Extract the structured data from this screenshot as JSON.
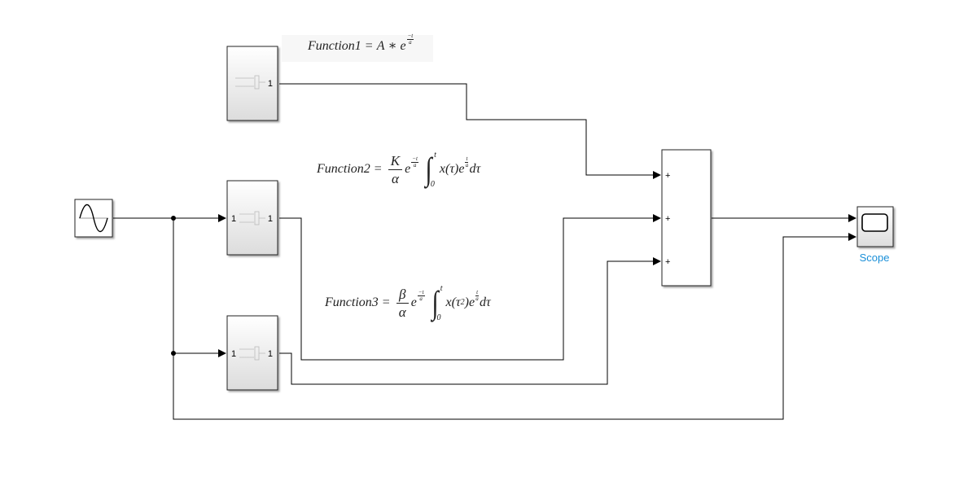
{
  "equations": {
    "f1": {
      "name": "Function1",
      "equals": "=",
      "body": "A",
      "star": "∗",
      "e": "e",
      "exp_num": "−t",
      "exp_den": "a"
    },
    "f2": {
      "name": "Function2",
      "equals": "=",
      "frac_num": "K",
      "frac_den": "α",
      "e": "e",
      "exp_num": "−t",
      "exp_den": "a",
      "int_upper": "t",
      "int_lower": "0",
      "integrand": "x(τ)e",
      "in_exp_num": "t",
      "in_exp_den": "a",
      "diff": "dτ"
    },
    "f3": {
      "name": "Function3",
      "equals": "=",
      "frac_num": "β",
      "frac_den": "α",
      "e": "e",
      "exp_num": "−t",
      "exp_den": "a",
      "int_upper": "t",
      "int_lower": "0",
      "integrand_a": "x(τ",
      "integrand_sq": "2",
      "integrand_b": ")e",
      "in_exp_num": "t",
      "in_exp_den": "a",
      "diff": "dτ"
    }
  },
  "blocks": {
    "func1": {
      "out_port": "1"
    },
    "func2": {
      "in_port": "1",
      "out_port": "1"
    },
    "func3": {
      "in_port": "1",
      "out_port": "1"
    },
    "sum": {
      "signs": [
        "+",
        "+",
        "+"
      ]
    },
    "scope": {
      "label": "Scope"
    }
  },
  "colors": {
    "line": "#000000",
    "block_border": "#222222",
    "block_fill_top": "#ffffff",
    "block_fill_bottom": "#dcdcdc",
    "scope_label": "#1a8fd8"
  }
}
